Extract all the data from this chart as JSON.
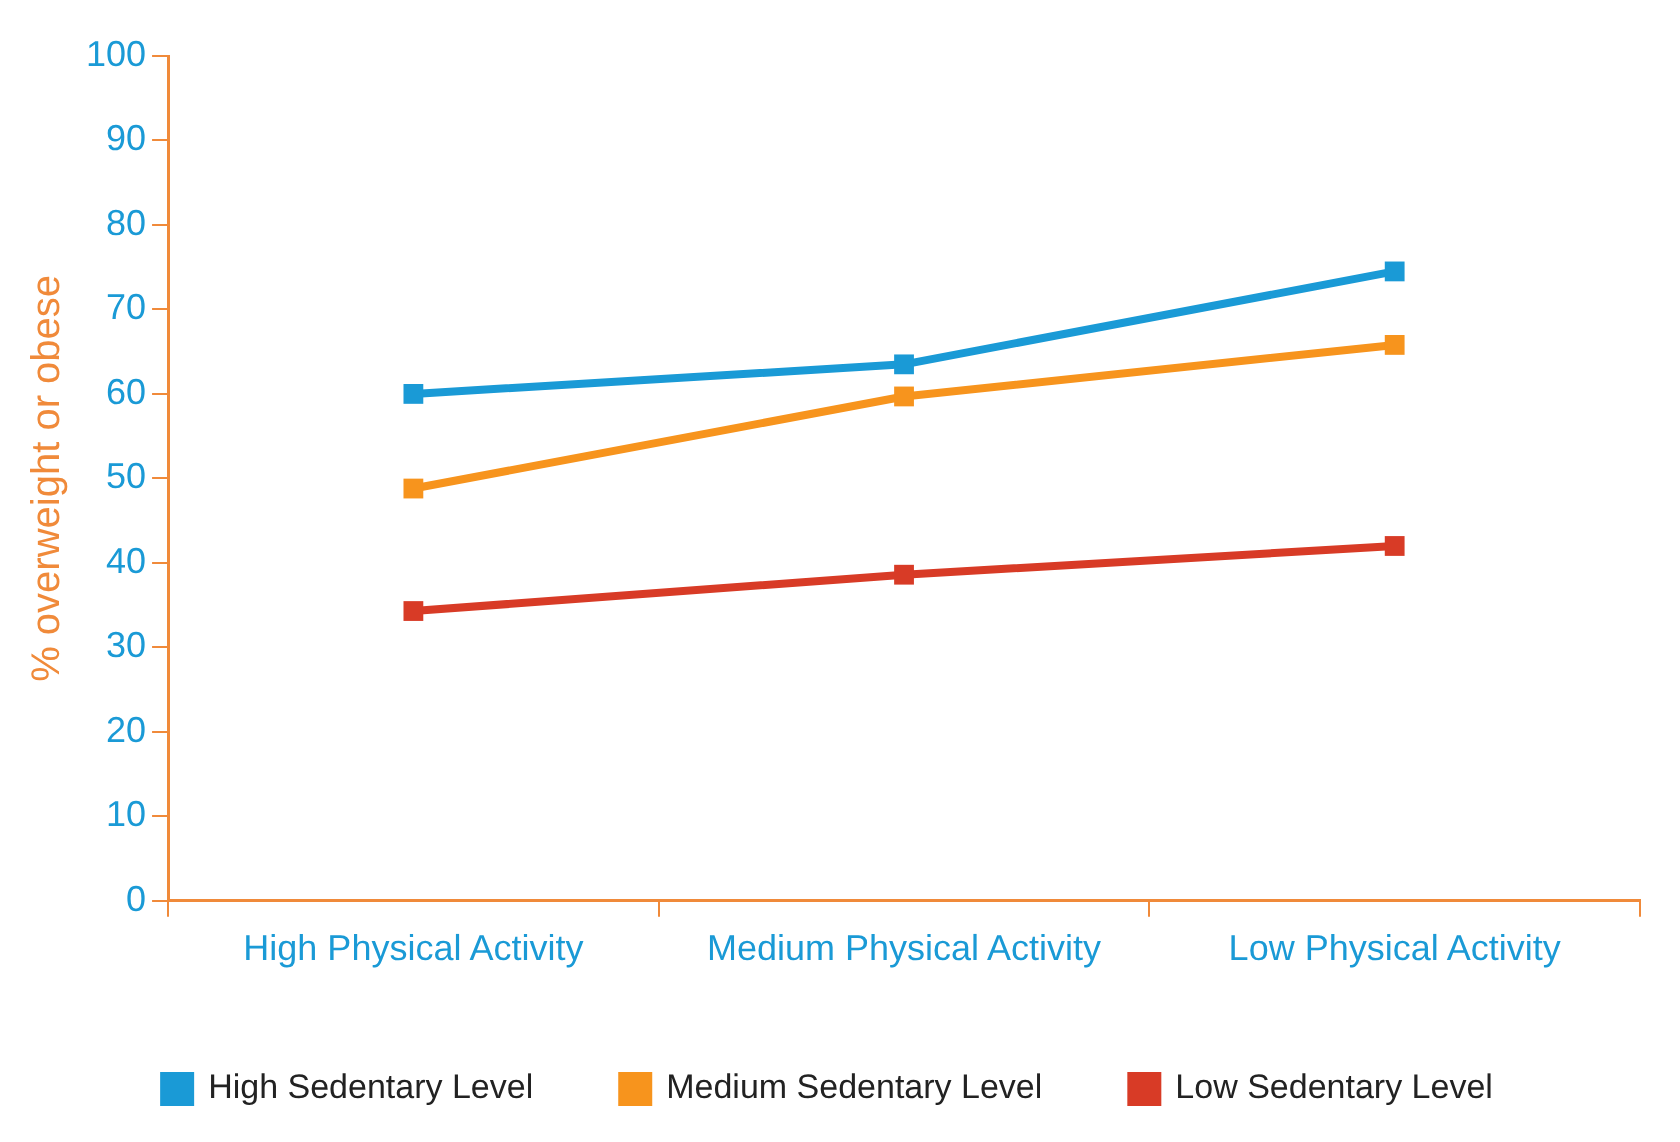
{
  "chart_data": {
    "type": "line",
    "ylabel": "% overweight or obese",
    "categories": [
      "High Physical Activity",
      "Medium Physical Activity",
      "Low Physical Activity"
    ],
    "series": [
      {
        "name": "High Sedentary Level",
        "color": "#1a9ad6",
        "values": [
          60,
          63.5,
          74.5
        ]
      },
      {
        "name": "Medium Sedentary Level",
        "color": "#f7941d",
        "values": [
          48.8,
          59.7,
          65.8
        ]
      },
      {
        "name": "Low Sedentary Level",
        "color": "#d83b26",
        "values": [
          34.3,
          38.6,
          42
        ]
      }
    ],
    "ylim": [
      0,
      100
    ],
    "yticks": [
      0,
      10,
      20,
      30,
      40,
      50,
      60,
      70,
      80,
      90,
      100
    ],
    "grid": false,
    "legend": "bottom",
    "marker": "square",
    "line_style": "solid"
  }
}
